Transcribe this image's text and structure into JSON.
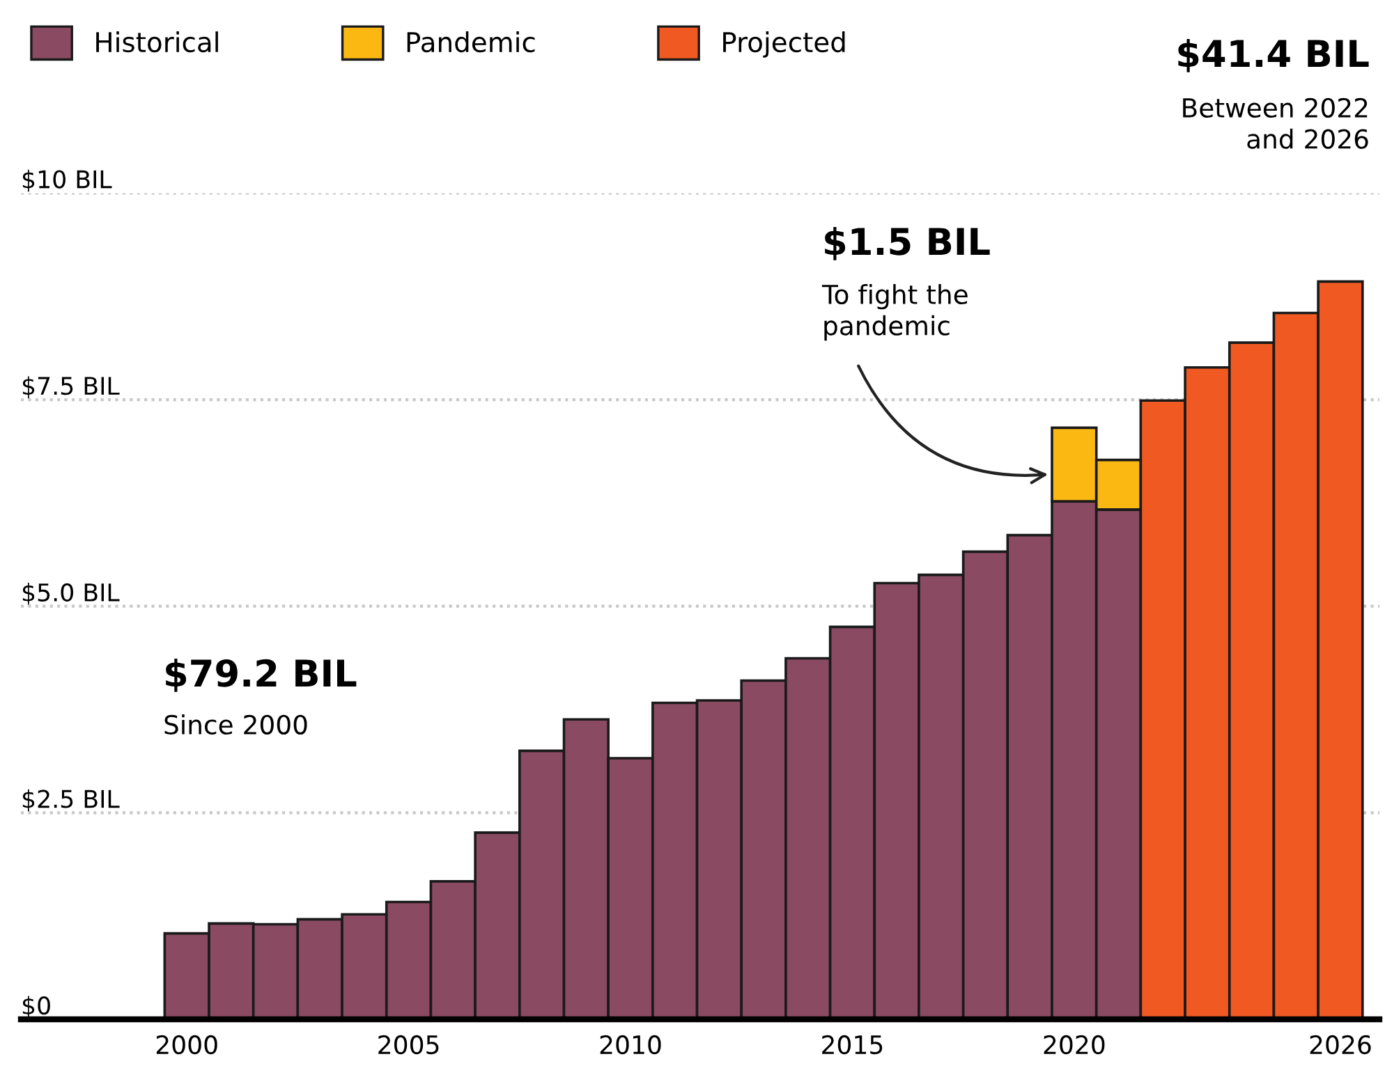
{
  "chart_data": {
    "type": "bar",
    "stacked": true,
    "categories": [
      "2000",
      null,
      null,
      null,
      null,
      "2005",
      null,
      null,
      null,
      null,
      "2010",
      null,
      null,
      null,
      null,
      "2015",
      null,
      null,
      null,
      null,
      "2020",
      null,
      null,
      null,
      null,
      null,
      "2026"
    ],
    "series": [
      {
        "name": "Historical",
        "color": "#8a4a62",
        "values": [
          1.04,
          1.16,
          1.15,
          1.21,
          1.27,
          1.42,
          1.67,
          2.26,
          3.25,
          3.63,
          3.16,
          3.83,
          3.86,
          4.1,
          4.37,
          4.75,
          5.28,
          5.38,
          5.66,
          5.86,
          6.27,
          6.17,
          null,
          null,
          null,
          null,
          null
        ]
      },
      {
        "name": "Pandemic",
        "color": "#fbb813",
        "values": [
          null,
          null,
          null,
          null,
          null,
          null,
          null,
          null,
          null,
          null,
          null,
          null,
          null,
          null,
          null,
          null,
          null,
          null,
          null,
          null,
          0.89,
          0.6,
          null,
          null,
          null,
          null,
          null
        ]
      },
      {
        "name": "Projected",
        "color": "#f05a22",
        "values": [
          null,
          null,
          null,
          null,
          null,
          null,
          null,
          null,
          null,
          null,
          null,
          null,
          null,
          null,
          null,
          null,
          null,
          null,
          null,
          null,
          null,
          null,
          7.49,
          7.89,
          8.19,
          8.55,
          8.93
        ]
      }
    ],
    "ylim": [
      0,
      10
    ],
    "yticks": [
      {
        "value": 0,
        "label": "$0"
      },
      {
        "value": 2.5,
        "label": "$2.5 BIL"
      },
      {
        "value": 5,
        "label": "$5.0 BIL"
      },
      {
        "value": 7.5,
        "label": "$7.5 BIL"
      },
      {
        "value": 10,
        "label": "$10 BIL"
      }
    ],
    "grid": "y",
    "legend": "top left",
    "annotations": [
      "$41.4 BIL",
      "Between 2022\nand 2026",
      "$1.5 BIL",
      "To fight the\npandemic",
      "$79.2 BIL",
      "Since 2000"
    ]
  }
}
